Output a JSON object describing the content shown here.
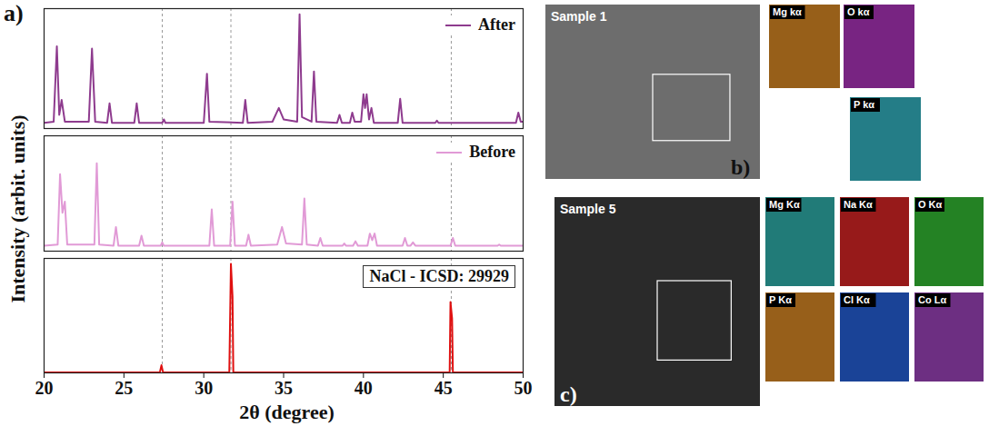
{
  "chart_data": [
    {
      "type": "line",
      "xlim": [
        20,
        50
      ],
      "ylim": [
        0,
        105
      ],
      "tick_labels": false,
      "legend": "top-right",
      "series": [
        {
          "name": "After",
          "color": "#8e3b8e",
          "x": [
            20.0,
            20.6,
            20.8,
            20.95,
            21.1,
            21.3,
            22.8,
            23.0,
            23.2,
            23.95,
            24.1,
            24.25,
            25.65,
            25.8,
            25.95,
            27.4,
            27.5,
            27.6,
            30.0,
            30.2,
            30.35,
            32.45,
            32.6,
            32.75,
            34.3,
            34.7,
            35.0,
            35.85,
            36.0,
            36.15,
            36.75,
            36.9,
            37.05,
            38.35,
            38.5,
            38.65,
            39.15,
            39.3,
            39.45,
            39.85,
            40.0,
            40.1,
            40.2,
            40.35,
            40.5,
            40.65,
            42.15,
            42.3,
            42.45,
            44.5,
            44.6,
            44.7,
            49.55,
            49.7,
            49.85,
            50.0
          ],
          "values": [
            5,
            6,
            72,
            12,
            25,
            6,
            6,
            70,
            6,
            5,
            22,
            5,
            5,
            22,
            5,
            5,
            8,
            5,
            5,
            48,
            6,
            5,
            25,
            5,
            6,
            18,
            8,
            6,
            100,
            10,
            6,
            50,
            6,
            5,
            12,
            5,
            5,
            14,
            6,
            6,
            30,
            18,
            30,
            8,
            18,
            5,
            5,
            26,
            5,
            5,
            7,
            5,
            5,
            14,
            6,
            6
          ]
        }
      ]
    },
    {
      "type": "line",
      "xlim": [
        20,
        50
      ],
      "ylim": [
        0,
        105
      ],
      "tick_labels": false,
      "legend": "top-right",
      "series": [
        {
          "name": "Before",
          "color": "#e19ad6",
          "x": [
            20.0,
            20.85,
            21.0,
            21.15,
            21.3,
            21.45,
            23.15,
            23.3,
            23.45,
            24.35,
            24.5,
            24.65,
            25.95,
            26.1,
            26.25,
            27.3,
            27.4,
            27.5,
            30.35,
            30.5,
            30.65,
            31.65,
            31.8,
            31.95,
            32.65,
            32.8,
            32.95,
            34.6,
            34.9,
            35.15,
            36.15,
            36.3,
            36.45,
            37.15,
            37.3,
            37.45,
            38.7,
            38.8,
            38.9,
            39.35,
            39.5,
            39.65,
            40.25,
            40.4,
            40.55,
            40.7,
            40.85,
            42.45,
            42.6,
            42.75,
            42.95,
            43.1,
            43.25,
            45.45,
            45.6,
            45.75,
            48.4,
            48.5,
            48.6,
            50.0
          ],
          "values": [
            5,
            6,
            70,
            35,
            45,
            6,
            6,
            80,
            6,
            5,
            22,
            5,
            5,
            14,
            5,
            5,
            8,
            5,
            5,
            38,
            5,
            5,
            45,
            5,
            5,
            15,
            5,
            6,
            22,
            7,
            6,
            48,
            6,
            5,
            12,
            5,
            5,
            7,
            5,
            5,
            9,
            5,
            5,
            16,
            10,
            16,
            5,
            5,
            12,
            5,
            5,
            8,
            5,
            5,
            12,
            5,
            5,
            6,
            5,
            5
          ]
        }
      ]
    },
    {
      "type": "line",
      "xlim": [
        20,
        50
      ],
      "ylim": [
        0,
        105
      ],
      "xticks": [
        20,
        25,
        30,
        35,
        40,
        45,
        50
      ],
      "tick_labels": "x",
      "legend": "top-right",
      "series": [
        {
          "name": "NaCl - ICSD: 29929",
          "color": "#e01010",
          "x": [
            20.0,
            27.25,
            27.35,
            27.45,
            31.6,
            31.7,
            31.8,
            31.85,
            45.4,
            45.45,
            45.55,
            45.6,
            50.0
          ],
          "values": [
            0.5,
            0.5,
            7,
            0.5,
            0.5,
            100,
            70,
            0.5,
            0.5,
            65,
            50,
            0.5,
            0.5
          ]
        }
      ]
    }
  ],
  "figure": {
    "panel_a": {
      "letter": "a)",
      "xlabel": "2θ (degree)",
      "ylabel": "Intensity (arbit. units)",
      "reference_lines": [
        27.4,
        31.7,
        45.5
      ]
    },
    "panel_b": {
      "letter": "b)",
      "image_label": "Sample 1",
      "maps": [
        {
          "label": "Mg kα",
          "color": "#e08a1e"
        },
        {
          "label": "O kα",
          "color": "#b030c0"
        },
        {
          "label": "P kα",
          "color": "#30b8c8"
        }
      ]
    },
    "panel_c": {
      "letter": "c)",
      "image_label": "Sample 5",
      "maps": [
        {
          "label": "Mg Kα",
          "color": "#2bb5b0"
        },
        {
          "label": "Na Kα",
          "color": "#e02020"
        },
        {
          "label": "O Kα",
          "color": "#30c030"
        },
        {
          "label": "P Kα",
          "color": "#e08a20"
        },
        {
          "label": "Cl Kα",
          "color": "#2060e0"
        },
        {
          "label": "Co Lα",
          "color": "#a040c0"
        }
      ]
    }
  }
}
